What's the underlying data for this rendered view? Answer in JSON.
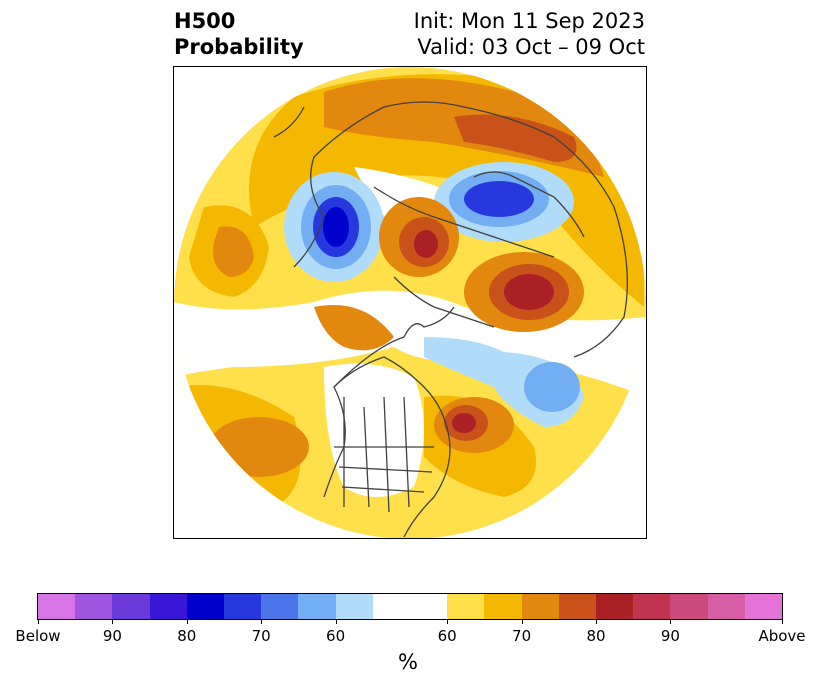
{
  "header": {
    "title_line1": "H500",
    "title_line2": "Probability",
    "init": "Init: Mon 11 Sep 2023",
    "valid": "Valid: 03 Oct – 09 Oct"
  },
  "map": {
    "projection": "polar-stereographic",
    "region": "northern-hemisphere"
  },
  "colorbar": {
    "unit": "%",
    "tick_labels": [
      "Below",
      "90",
      "80",
      "70",
      "60",
      "60",
      "70",
      "80",
      "90",
      "Above"
    ],
    "colors": [
      "#d774e6",
      "#9f54df",
      "#6b39d9",
      "#3a16d6",
      "#0000cc",
      "#2739de",
      "#4a75e8",
      "#74aef2",
      "#b0dcfa",
      "#ffffff",
      "#ffe04a",
      "#f4b800",
      "#e2880e",
      "#c8521a",
      "#ab2025",
      "#c1344f",
      "#cc4a7b",
      "#d75ea6",
      "#e473d7"
    ]
  }
}
